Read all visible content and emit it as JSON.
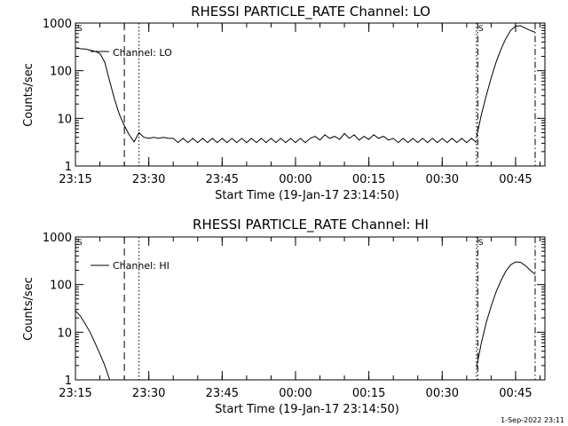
{
  "footer": {
    "date_stamp": "1-Sep-2022 23:11"
  },
  "chart_data": [
    {
      "type": "line",
      "title": "RHESSI PARTICLE_RATE Channel: LO",
      "xlabel": "Start Time (19-Jan-17 23:14:50)",
      "ylabel": "Counts/sec",
      "legend": "Channel: LO",
      "legend_position": "top-left",
      "yscale": "log",
      "ylim": [
        1,
        1000
      ],
      "y_ticks": [
        1,
        10,
        100,
        1000
      ],
      "y_tick_labels": [
        "1",
        "10",
        "100",
        "1000"
      ],
      "xlim": [
        "23:15",
        "00:51"
      ],
      "x_tick_labels": [
        "23:15",
        "23:30",
        "23:45",
        "00:00",
        "00:15",
        "00:30",
        "00:45"
      ],
      "markers": [
        {
          "time": "23:15",
          "label": "S",
          "style": "dotted"
        },
        {
          "time": "23:25",
          "style": "dashed"
        },
        {
          "time": "23:28",
          "style": "dotted"
        },
        {
          "time": "00:37",
          "label": "S",
          "style": "dotted"
        },
        {
          "time": "00:37",
          "style": "dash-dot"
        },
        {
          "time": "00:49",
          "style": "dash-dot"
        }
      ],
      "series": [
        {
          "name": "Channel: LO",
          "segments": [
            [
              [
                "23:15",
                300
              ],
              [
                "23:16",
                290
              ],
              [
                "23:17",
                285
              ],
              [
                "23:18",
                270
              ],
              [
                "23:19",
                255
              ],
              [
                "23:20",
                230
              ],
              [
                "23:21",
                150
              ],
              [
                "23:22",
                60
              ],
              [
                "23:23",
                25
              ],
              [
                "23:24",
                12
              ],
              [
                "23:25",
                7
              ],
              [
                "23:26",
                4.5
              ],
              [
                "23:27",
                3.2
              ],
              [
                "23:28",
                5
              ],
              [
                "23:29",
                4
              ],
              [
                "23:30",
                3.8
              ],
              [
                "23:31",
                4
              ],
              [
                "23:32",
                3.8
              ],
              [
                "23:33",
                4
              ],
              [
                "23:34",
                3.8
              ],
              [
                "23:35",
                3.8
              ],
              [
                "23:36",
                3.1
              ],
              [
                "23:37",
                3.8
              ],
              [
                "23:38",
                3.1
              ],
              [
                "23:39",
                3.8
              ],
              [
                "23:40",
                3.1
              ],
              [
                "23:41",
                3.8
              ],
              [
                "23:42",
                3.1
              ],
              [
                "23:43",
                3.8
              ],
              [
                "23:44",
                3.1
              ],
              [
                "23:45",
                3.8
              ],
              [
                "23:46",
                3.1
              ],
              [
                "23:47",
                3.8
              ],
              [
                "23:48",
                3.1
              ],
              [
                "23:49",
                3.8
              ],
              [
                "23:50",
                3.1
              ],
              [
                "23:51",
                3.8
              ],
              [
                "23:52",
                3.1
              ],
              [
                "23:53",
                3.8
              ],
              [
                "23:54",
                3.1
              ],
              [
                "23:55",
                3.8
              ],
              [
                "23:56",
                3.1
              ],
              [
                "23:57",
                3.8
              ],
              [
                "23:58",
                3.1
              ],
              [
                "23:59",
                3.8
              ],
              [
                "00:00",
                3.1
              ],
              [
                "00:01",
                3.8
              ],
              [
                "00:02",
                3.1
              ],
              [
                "00:03",
                3.8
              ],
              [
                "00:04",
                4.2
              ],
              [
                "00:05",
                3.5
              ],
              [
                "00:06",
                4.5
              ],
              [
                "00:07",
                3.8
              ],
              [
                "00:08",
                4.2
              ],
              [
                "00:09",
                3.6
              ],
              [
                "00:10",
                4.8
              ],
              [
                "00:11",
                3.8
              ],
              [
                "00:12",
                4.5
              ],
              [
                "00:13",
                3.5
              ],
              [
                "00:14",
                4.2
              ],
              [
                "00:15",
                3.6
              ],
              [
                "00:16",
                4.5
              ],
              [
                "00:17",
                3.8
              ],
              [
                "00:18",
                4.2
              ],
              [
                "00:19",
                3.5
              ],
              [
                "00:20",
                3.8
              ],
              [
                "00:21",
                3.1
              ],
              [
                "00:22",
                3.8
              ],
              [
                "00:23",
                3.1
              ],
              [
                "00:24",
                3.8
              ],
              [
                "00:25",
                3.1
              ],
              [
                "00:26",
                3.8
              ],
              [
                "00:27",
                3.1
              ],
              [
                "00:28",
                3.8
              ],
              [
                "00:29",
                3.1
              ],
              [
                "00:30",
                3.8
              ],
              [
                "00:31",
                3.1
              ],
              [
                "00:32",
                3.8
              ],
              [
                "00:33",
                3.1
              ],
              [
                "00:34",
                3.8
              ],
              [
                "00:35",
                3.1
              ],
              [
                "00:36",
                3.8
              ],
              [
                "00:37",
                3.1
              ]
            ],
            [
              [
                "00:37",
                4
              ],
              [
                "00:38",
                12
              ],
              [
                "00:39",
                30
              ],
              [
                "00:40",
                70
              ],
              [
                "00:41",
                150
              ],
              [
                "00:42",
                280
              ],
              [
                "00:43",
                470
              ],
              [
                "00:44",
                700
              ],
              [
                "00:45",
                860
              ],
              [
                "00:46",
                880
              ],
              [
                "00:47",
                780
              ],
              [
                "00:48",
                700
              ],
              [
                "00:49",
                640
              ]
            ]
          ]
        }
      ]
    },
    {
      "type": "line",
      "title": "RHESSI PARTICLE_RATE Channel: HI",
      "xlabel": "Start Time (19-Jan-17 23:14:50)",
      "ylabel": "Counts/sec",
      "legend": "Channel: HI",
      "legend_position": "top-left",
      "yscale": "log",
      "ylim": [
        1,
        1000
      ],
      "y_ticks": [
        1,
        10,
        100,
        1000
      ],
      "y_tick_labels": [
        "1",
        "10",
        "100",
        "1000"
      ],
      "xlim": [
        "23:15",
        "00:51"
      ],
      "x_tick_labels": [
        "23:15",
        "23:30",
        "23:45",
        "00:00",
        "00:15",
        "00:30",
        "00:45"
      ],
      "markers": [
        {
          "time": "23:15",
          "label": "S",
          "style": "dotted"
        },
        {
          "time": "23:25",
          "style": "dashed"
        },
        {
          "time": "23:28",
          "style": "dotted"
        },
        {
          "time": "00:37",
          "label": "S",
          "style": "dotted"
        },
        {
          "time": "00:37",
          "style": "dash-dot"
        },
        {
          "time": "00:49",
          "style": "dash-dot"
        }
      ],
      "series": [
        {
          "name": "Channel: HI",
          "segments": [
            [
              [
                "23:15",
                28
              ],
              [
                "23:16",
                22
              ],
              [
                "23:17",
                15
              ],
              [
                "23:18",
                10
              ],
              [
                "23:19",
                6
              ],
              [
                "23:20",
                3.5
              ],
              [
                "23:21",
                2
              ],
              [
                "23:22",
                1
              ]
            ],
            [
              [
                "00:37",
                1.8
              ],
              [
                "00:38",
                6
              ],
              [
                "00:39",
                16
              ],
              [
                "00:40",
                35
              ],
              [
                "00:41",
                70
              ],
              [
                "00:42",
                120
              ],
              [
                "00:43",
                190
              ],
              [
                "00:44",
                260
              ],
              [
                "00:45",
                300
              ],
              [
                "00:46",
                295
              ],
              [
                "00:47",
                250
              ],
              [
                "00:48",
                200
              ],
              [
                "00:49",
                165
              ]
            ]
          ]
        }
      ]
    }
  ]
}
